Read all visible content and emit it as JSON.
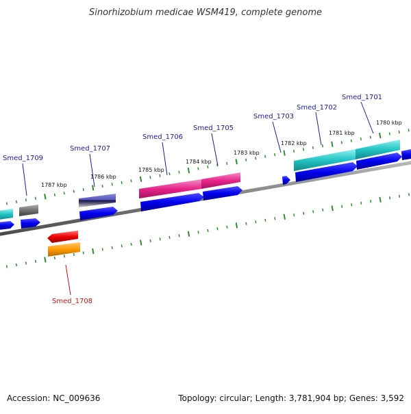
{
  "title": "Sinorhizobium medicae WSM419, complete genome",
  "accession": "Accession: NC_009636",
  "summary": "Topology: circular; Length: 3,781,904 bp; Genes: 3,592",
  "colors": {
    "backbone": "#7f7f7f",
    "tick": "#2e8b2e",
    "label_default": "#1a1aa0",
    "label_highlight": "#cc1111",
    "leader": "#1a1aa0",
    "leader_highlight": "#cc1111",
    "strand_forward": "#0000ee",
    "cyan": "#22c4c4",
    "magenta": "#e8248a",
    "gray": "#707070",
    "slate": "#5555bb",
    "red": "#ee0000",
    "orange": "#ff9900"
  },
  "gene_labels": [
    {
      "name": "Smed_1709",
      "highlight": false
    },
    {
      "name": "Smed_1707",
      "highlight": false
    },
    {
      "name": "Smed_1706",
      "highlight": false
    },
    {
      "name": "Smed_1705",
      "highlight": false
    },
    {
      "name": "Smed_1703",
      "highlight": false
    },
    {
      "name": "Smed_1702",
      "highlight": false
    },
    {
      "name": "Smed_1701",
      "highlight": false
    },
    {
      "name": "Smed_1708",
      "highlight": true
    }
  ],
  "kbp_labels": [
    "1787 kbp",
    "1786 kbp",
    "1785 kbp",
    "1784 kbp",
    "1783 kbp",
    "1782 kbp",
    "1781 kbp",
    "1780 kbp"
  ]
}
